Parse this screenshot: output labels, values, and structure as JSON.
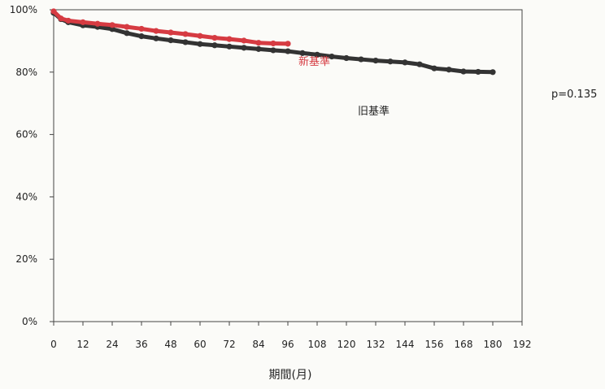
{
  "chart_data": {
    "type": "line",
    "title": "",
    "xlabel": "期間(月)",
    "ylabel": "",
    "xlim": [
      0,
      192
    ],
    "ylim": [
      0,
      100
    ],
    "x_ticks": [
      0,
      12,
      24,
      36,
      48,
      60,
      72,
      84,
      96,
      108,
      120,
      132,
      144,
      156,
      168,
      180,
      192
    ],
    "y_ticks": [
      0,
      20,
      40,
      60,
      80,
      100
    ],
    "y_tick_labels": [
      "0%",
      "20%",
      "40%",
      "60%",
      "80%",
      "100%"
    ],
    "grid": false,
    "legend": "inline labels",
    "series": [
      {
        "name": "旧基準",
        "color": "#333333",
        "x": [
          0,
          3,
          6,
          12,
          18,
          24,
          30,
          36,
          42,
          48,
          54,
          60,
          66,
          72,
          78,
          84,
          90,
          96,
          102,
          108,
          114,
          120,
          126,
          132,
          138,
          144,
          150,
          156,
          162,
          168,
          174,
          180
        ],
        "y": [
          99,
          97,
          96,
          95,
          94.5,
          93.8,
          92.5,
          91.5,
          90.8,
          90.2,
          89.6,
          89,
          88.6,
          88.2,
          87.8,
          87.4,
          87,
          86.7,
          86.1,
          85.6,
          85,
          84.5,
          84.1,
          83.7,
          83.4,
          83.1,
          82.5,
          81.2,
          80.8,
          80.2,
          80.1,
          80
        ]
      },
      {
        "name": "新基準",
        "color": "#d63b42",
        "x": [
          0,
          3,
          6,
          12,
          18,
          24,
          30,
          36,
          42,
          48,
          54,
          60,
          66,
          72,
          78,
          84,
          90,
          96
        ],
        "y": [
          99.5,
          97.2,
          96.5,
          96,
          95.5,
          95.1,
          94.5,
          93.9,
          93.2,
          92.7,
          92.2,
          91.6,
          91,
          90.6,
          90.1,
          89.4,
          89.2,
          89.1
        ]
      }
    ],
    "annotations": [
      {
        "text": "p=0.135"
      }
    ]
  }
}
